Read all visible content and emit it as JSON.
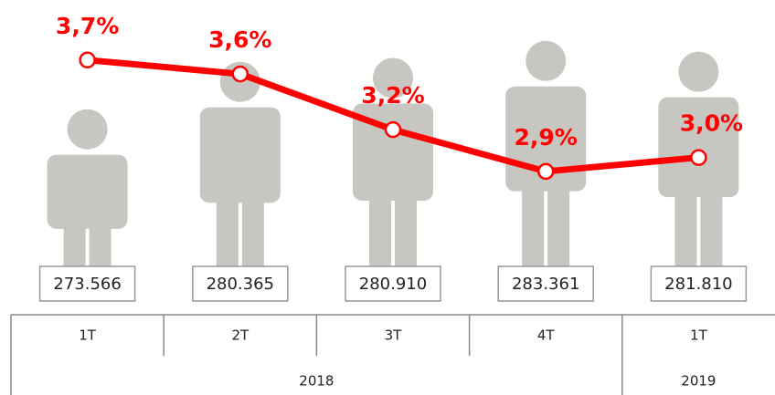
{
  "chart_data": {
    "type": "pictograph-line",
    "periods": [
      {
        "year": "2018",
        "quarters": [
          "1T",
          "2T",
          "3T",
          "4T"
        ]
      },
      {
        "year": "2019",
        "quarters": [
          "1T"
        ]
      }
    ],
    "series": [
      {
        "type": "pictograph",
        "color": "#c8c6c1",
        "axis": "y2",
        "values": [
          273566,
          280365,
          280910,
          283361,
          281810
        ],
        "value_labels": [
          "273.566",
          "280.365",
          "280.910",
          "283.361",
          "281.810"
        ]
      },
      {
        "type": "line",
        "color": "#ff0000",
        "values": [
          3.7,
          3.6,
          3.2,
          2.9,
          3.0
        ],
        "value_labels": [
          "3,7%",
          "3,6%",
          "3,2%",
          "2,9%",
          "3,0%"
        ]
      }
    ],
    "ylim": [
      2.5,
      4.0
    ],
    "y2lim": [
      250000,
      290000
    ]
  }
}
